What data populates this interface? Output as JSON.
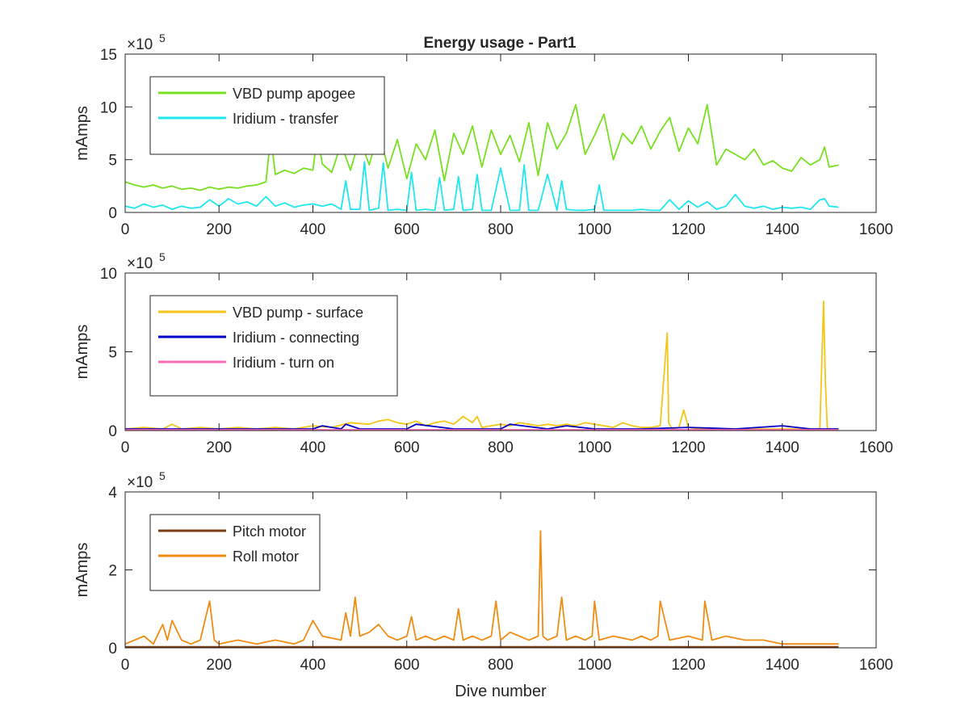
{
  "figure_title": "Energy usage - Part1",
  "chart_data": [
    {
      "type": "line",
      "title": "Energy usage - Part1",
      "xlabel": "",
      "ylabel": "mAmps",
      "exponent_label": "5",
      "xlim": [
        0,
        1600
      ],
      "ylim": [
        0,
        15
      ],
      "xticks": [
        "0",
        "200",
        "400",
        "600",
        "800",
        "1000",
        "1200",
        "1400",
        "1600"
      ],
      "xtick_values": [
        0,
        200,
        400,
        600,
        800,
        1000,
        1200,
        1400,
        1600
      ],
      "yticks": [
        "0",
        "5",
        "10",
        "15"
      ],
      "ytick_values": [
        0,
        5,
        10,
        15
      ],
      "legend_position": "top-left",
      "series": [
        {
          "name": "VBD pump apogee",
          "color": "#77e01f",
          "x": [
            0,
            20,
            40,
            60,
            80,
            100,
            120,
            140,
            160,
            180,
            200,
            220,
            240,
            260,
            280,
            300,
            310,
            320,
            340,
            360,
            380,
            400,
            410,
            420,
            440,
            460,
            480,
            500,
            520,
            540,
            560,
            580,
            600,
            620,
            640,
            660,
            680,
            700,
            720,
            740,
            760,
            780,
            800,
            820,
            840,
            860,
            880,
            900,
            920,
            940,
            960,
            980,
            1000,
            1020,
            1040,
            1060,
            1080,
            1100,
            1120,
            1140,
            1160,
            1180,
            1200,
            1220,
            1240,
            1260,
            1280,
            1300,
            1320,
            1340,
            1360,
            1380,
            1400,
            1420,
            1440,
            1460,
            1480,
            1490,
            1500,
            1520
          ],
          "values": [
            2.9,
            2.6,
            2.4,
            2.6,
            2.3,
            2.5,
            2.2,
            2.3,
            2.1,
            2.4,
            2.2,
            2.4,
            2.3,
            2.5,
            2.6,
            2.9,
            7.2,
            3.6,
            4.0,
            3.7,
            4.2,
            4.0,
            7.5,
            4.6,
            3.8,
            6.5,
            4.0,
            7.0,
            4.5,
            7.8,
            4.2,
            6.9,
            3.2,
            6.5,
            5.0,
            7.8,
            3.0,
            7.5,
            5.5,
            8.2,
            4.3,
            7.8,
            5.5,
            7.3,
            4.8,
            8.5,
            3.5,
            8.5,
            6.0,
            7.5,
            10.2,
            5.5,
            7.3,
            9.3,
            5.0,
            7.5,
            6.5,
            8.2,
            6.0,
            7.7,
            9.0,
            5.8,
            8.0,
            6.5,
            10.2,
            4.5,
            6.0,
            5.5,
            5.0,
            6.0,
            4.5,
            4.9,
            4.2,
            3.9,
            5.2,
            4.5,
            5.0,
            6.2,
            4.3,
            4.5
          ]
        },
        {
          "name": "Iridium - transfer",
          "color": "#1ee8ef",
          "x": [
            0,
            20,
            40,
            60,
            80,
            100,
            120,
            140,
            160,
            180,
            200,
            220,
            240,
            260,
            280,
            300,
            320,
            340,
            360,
            380,
            400,
            420,
            440,
            460,
            470,
            480,
            500,
            510,
            520,
            540,
            550,
            560,
            580,
            600,
            610,
            620,
            640,
            660,
            670,
            680,
            700,
            710,
            720,
            740,
            750,
            760,
            780,
            800,
            820,
            840,
            850,
            860,
            880,
            900,
            920,
            930,
            940,
            960,
            980,
            1000,
            1010,
            1020,
            1040,
            1060,
            1080,
            1100,
            1120,
            1140,
            1160,
            1180,
            1200,
            1220,
            1240,
            1260,
            1280,
            1300,
            1320,
            1340,
            1360,
            1380,
            1400,
            1420,
            1440,
            1460,
            1480,
            1490,
            1500,
            1520
          ],
          "values": [
            0.6,
            0.4,
            0.8,
            0.5,
            0.7,
            0.3,
            0.6,
            0.4,
            0.5,
            1.2,
            0.6,
            1.3,
            0.8,
            1.0,
            0.6,
            1.5,
            0.6,
            0.9,
            0.5,
            0.7,
            0.8,
            0.6,
            0.8,
            0.3,
            3.0,
            0.3,
            0.3,
            4.8,
            0.2,
            0.4,
            4.7,
            0.2,
            0.3,
            0.2,
            3.8,
            0.2,
            0.3,
            0.2,
            3.3,
            0.2,
            0.3,
            3.4,
            0.2,
            0.3,
            3.6,
            0.2,
            0.2,
            4.2,
            0.2,
            0.2,
            4.5,
            0.2,
            0.2,
            3.6,
            0.2,
            3.0,
            0.3,
            0.2,
            0.2,
            0.3,
            2.6,
            0.2,
            0.2,
            0.2,
            0.2,
            0.3,
            0.2,
            0.2,
            1.2,
            0.3,
            1.1,
            0.5,
            1.0,
            0.3,
            0.6,
            1.7,
            0.6,
            0.4,
            0.6,
            0.3,
            0.5,
            0.4,
            0.5,
            0.3,
            1.2,
            1.3,
            0.6,
            0.5
          ]
        }
      ]
    },
    {
      "type": "line",
      "title": "",
      "xlabel": "",
      "ylabel": "mAmps",
      "exponent_label": "5",
      "xlim": [
        0,
        1600
      ],
      "ylim": [
        0,
        10
      ],
      "xticks": [
        "0",
        "200",
        "400",
        "600",
        "800",
        "1000",
        "1200",
        "1400",
        "1600"
      ],
      "xtick_values": [
        0,
        200,
        400,
        600,
        800,
        1000,
        1200,
        1400,
        1600
      ],
      "yticks": [
        "0",
        "5",
        "10"
      ],
      "ytick_values": [
        0,
        5,
        10
      ],
      "legend_position": "top-left",
      "series": [
        {
          "name": "VBD pump - surface",
          "color": "#f5c518",
          "x": [
            0,
            40,
            80,
            100,
            120,
            160,
            200,
            240,
            280,
            320,
            360,
            400,
            440,
            480,
            520,
            540,
            560,
            580,
            600,
            620,
            640,
            660,
            680,
            700,
            720,
            740,
            750,
            760,
            780,
            800,
            820,
            840,
            860,
            880,
            900,
            920,
            940,
            960,
            980,
            1000,
            1020,
            1040,
            1060,
            1080,
            1100,
            1120,
            1140,
            1155,
            1158,
            1165,
            1180,
            1190,
            1200,
            1220,
            1240,
            1260,
            1280,
            1300,
            1320,
            1340,
            1360,
            1380,
            1400,
            1420,
            1440,
            1460,
            1480,
            1488,
            1492,
            1496,
            1520
          ],
          "values": [
            0.1,
            0.2,
            0.1,
            0.4,
            0.1,
            0.2,
            0.1,
            0.2,
            0.1,
            0.2,
            0.1,
            0.3,
            0.2,
            0.5,
            0.4,
            0.6,
            0.7,
            0.5,
            0.4,
            0.6,
            0.3,
            0.5,
            0.6,
            0.4,
            0.9,
            0.5,
            0.9,
            0.2,
            0.3,
            0.4,
            0.3,
            0.5,
            0.4,
            0.3,
            0.4,
            0.3,
            0.4,
            0.3,
            0.5,
            0.4,
            0.3,
            0.2,
            0.5,
            0.3,
            0.2,
            0.2,
            0.3,
            6.2,
            0.5,
            0.1,
            0.2,
            1.3,
            0.2,
            0.1,
            0.1,
            0.1,
            0.1,
            0.1,
            0.1,
            0.1,
            0.1,
            0.1,
            0.1,
            0.1,
            0.1,
            0.1,
            0.1,
            8.2,
            3.0,
            0.1,
            0.1
          ]
        },
        {
          "name": "Iridium - connecting",
          "color": "#0000c8",
          "x": [
            0,
            100,
            200,
            300,
            400,
            420,
            460,
            470,
            500,
            600,
            620,
            700,
            800,
            820,
            900,
            940,
            1000,
            1100,
            1200,
            1300,
            1400,
            1460,
            1520
          ],
          "values": [
            0.1,
            0.1,
            0.1,
            0.1,
            0.1,
            0.3,
            0.1,
            0.4,
            0.1,
            0.1,
            0.4,
            0.1,
            0.1,
            0.4,
            0.1,
            0.3,
            0.1,
            0.1,
            0.2,
            0.1,
            0.3,
            0.1,
            0.1
          ]
        },
        {
          "name": "Iridium - turn on",
          "color": "#ff69b4",
          "x": [
            0,
            200,
            400,
            600,
            800,
            1000,
            1200,
            1400,
            1520
          ],
          "values": [
            0.05,
            0.05,
            0.05,
            0.05,
            0.05,
            0.05,
            0.05,
            0.05,
            0.05
          ]
        }
      ]
    },
    {
      "type": "line",
      "title": "",
      "xlabel": "Dive number",
      "ylabel": "mAmps",
      "exponent_label": "5",
      "xlim": [
        0,
        1600
      ],
      "ylim": [
        0,
        4
      ],
      "xticks": [
        "0",
        "200",
        "400",
        "600",
        "800",
        "1000",
        "1200",
        "1400",
        "1600"
      ],
      "xtick_values": [
        0,
        200,
        400,
        600,
        800,
        1000,
        1200,
        1400,
        1600
      ],
      "yticks": [
        "0",
        "2",
        "4"
      ],
      "ytick_values": [
        0,
        2,
        4
      ],
      "legend_position": "top-left",
      "series": [
        {
          "name": "Pitch motor",
          "color": "#7a3e12",
          "x": [
            0,
            200,
            400,
            600,
            800,
            1000,
            1200,
            1400,
            1520
          ],
          "values": [
            0.03,
            0.03,
            0.03,
            0.03,
            0.03,
            0.03,
            0.03,
            0.03,
            0.03
          ]
        },
        {
          "name": "Roll motor",
          "color": "#f08c12",
          "x": [
            0,
            20,
            40,
            60,
            80,
            90,
            100,
            120,
            140,
            160,
            180,
            190,
            200,
            240,
            280,
            320,
            360,
            380,
            400,
            420,
            460,
            470,
            480,
            490,
            500,
            520,
            540,
            560,
            580,
            600,
            610,
            620,
            640,
            660,
            680,
            700,
            710,
            720,
            740,
            760,
            780,
            790,
            800,
            820,
            840,
            860,
            880,
            885,
            890,
            900,
            920,
            930,
            940,
            960,
            980,
            995,
            1000,
            1010,
            1040,
            1080,
            1100,
            1120,
            1135,
            1140,
            1160,
            1200,
            1230,
            1235,
            1250,
            1280,
            1320,
            1360,
            1400,
            1440,
            1480,
            1520
          ],
          "values": [
            0.1,
            0.2,
            0.3,
            0.1,
            0.6,
            0.2,
            0.7,
            0.2,
            0.1,
            0.2,
            1.2,
            0.2,
            0.1,
            0.2,
            0.1,
            0.2,
            0.1,
            0.2,
            0.7,
            0.3,
            0.2,
            0.9,
            0.3,
            1.3,
            0.3,
            0.4,
            0.6,
            0.3,
            0.2,
            0.3,
            0.8,
            0.2,
            0.3,
            0.2,
            0.3,
            0.2,
            1.0,
            0.2,
            0.3,
            0.2,
            0.3,
            1.2,
            0.2,
            0.4,
            0.3,
            0.2,
            0.3,
            3.0,
            0.3,
            0.2,
            0.3,
            1.3,
            0.2,
            0.3,
            0.2,
            0.3,
            1.2,
            0.2,
            0.3,
            0.2,
            0.3,
            0.2,
            0.3,
            1.2,
            0.2,
            0.3,
            0.2,
            1.2,
            0.2,
            0.3,
            0.2,
            0.2,
            0.1,
            0.1,
            0.1,
            0.1
          ]
        }
      ]
    }
  ]
}
